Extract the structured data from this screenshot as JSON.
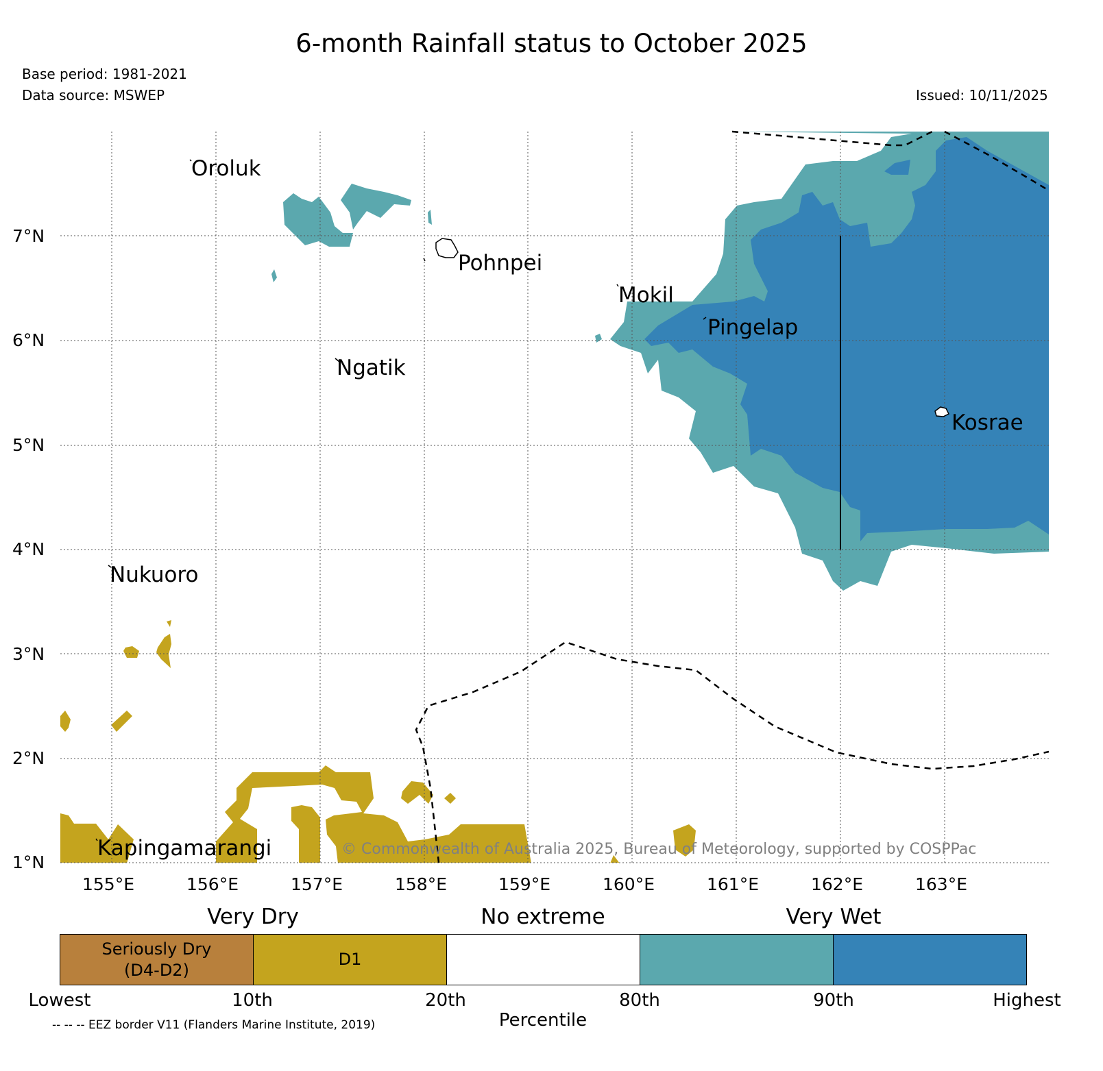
{
  "title": "6-month Rainfall status to October 2025",
  "base_period": "Base period: 1981-2021",
  "data_source": "Data source: MSWEP",
  "issued": "Issued: 10/11/2025",
  "copyright": "© Commonwealth of Australia 2025, Bureau of Meteorology, supported by COSPPac",
  "map": {
    "lat_ticks": [
      "1°N",
      "2°N",
      "3°N",
      "4°N",
      "5°N",
      "6°N",
      "7°N"
    ],
    "lon_ticks": [
      "155°E",
      "156°E",
      "157°E",
      "158°E",
      "159°E",
      "160°E",
      "161°E",
      "162°E",
      "163°E"
    ],
    "places": {
      "oroluk": "Oroluk",
      "pohnpei": "Pohnpei",
      "mokil": "Mokil",
      "pingelap": "Pingelap",
      "ngatik": "Ngatik",
      "kosrae": "Kosrae",
      "nukuoro": "Nukuoro",
      "kapingamarangi": "Kapingamarangi"
    }
  },
  "legend": {
    "categories": {
      "very_dry": "Very Dry",
      "no_extreme": "No extreme",
      "very_wet": "Very Wet"
    },
    "segments": {
      "seriously_dry": "Seriously Dry\n(D4-D2)",
      "d1": "D1"
    },
    "percentiles": {
      "lowest": "Lowest",
      "p10": "10th",
      "p20": "20th",
      "p80": "80th",
      "p90": "90th",
      "highest": "Highest"
    },
    "axis_label": "Percentile",
    "colors": {
      "seriously_dry": "#b8803c",
      "d1": "#c4a41e",
      "no_extreme": "#ffffff",
      "very_wet_80": "#5ba8ae",
      "very_wet_90": "#3583b7"
    }
  },
  "eez_note": "-- -- -- EEZ border V11 (Flanders Marine Institute, 2019)"
}
